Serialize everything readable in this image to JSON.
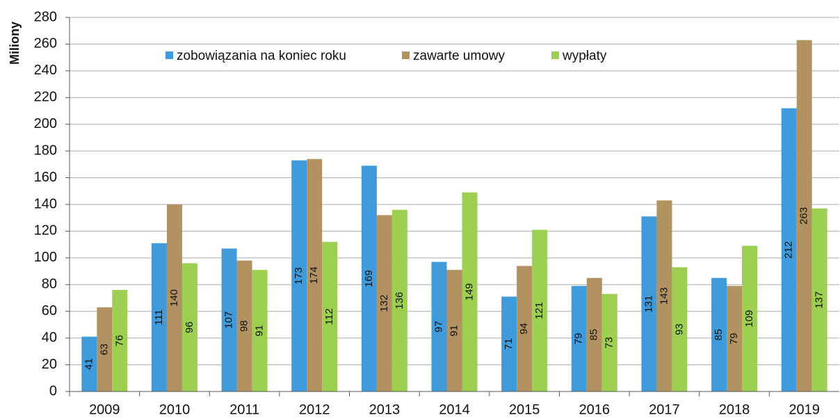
{
  "chart_data": {
    "type": "bar",
    "y_label": "Miliony",
    "categories": [
      "2009",
      "2010",
      "2011",
      "2012",
      "2013",
      "2014",
      "2015",
      "2016",
      "2017",
      "2018",
      "2019"
    ],
    "series": [
      {
        "name": "zobowiązania na koniec roku",
        "color": "#3f9bdc",
        "values": [
          41,
          111,
          107,
          173,
          169,
          97,
          71,
          79,
          131,
          85,
          212
        ]
      },
      {
        "name": "zawarte umowy",
        "color": "#b39262",
        "values": [
          63,
          140,
          98,
          174,
          132,
          91,
          94,
          85,
          143,
          79,
          263
        ]
      },
      {
        "name": "wypłaty",
        "color": "#9dd050",
        "values": [
          76,
          96,
          91,
          112,
          136,
          149,
          121,
          73,
          93,
          109,
          137
        ]
      }
    ],
    "ylim": [
      0,
      280
    ],
    "yticks": [
      0,
      20,
      40,
      60,
      80,
      100,
      120,
      140,
      160,
      180,
      200,
      220,
      240,
      260,
      280
    ],
    "grid": true,
    "legend": "top"
  }
}
